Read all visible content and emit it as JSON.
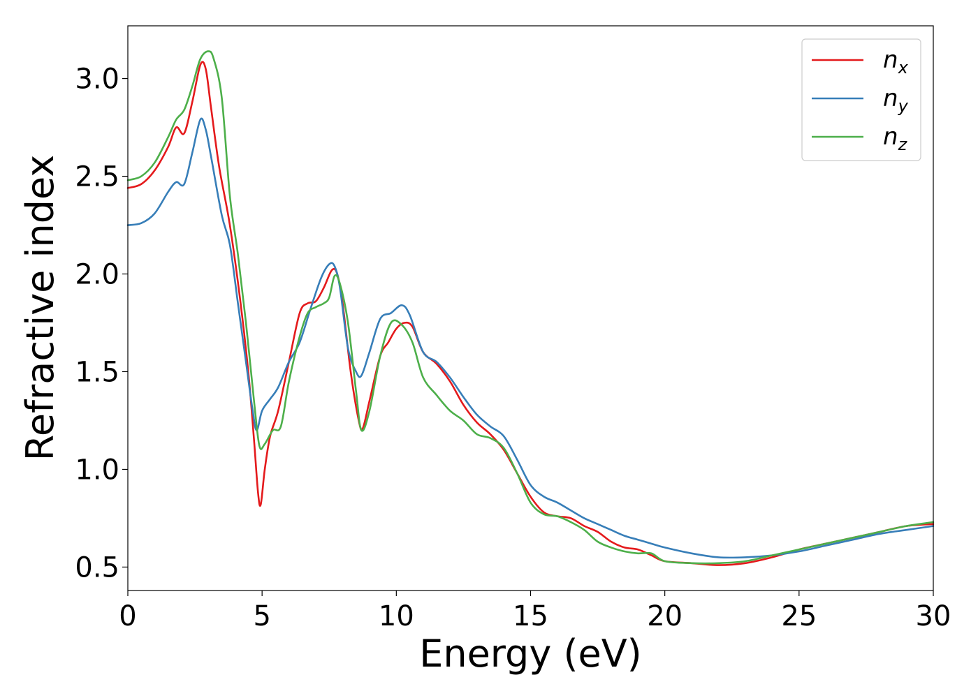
{
  "chart_data": {
    "type": "line",
    "title": "",
    "xlabel": "Energy (eV)",
    "ylabel": "Refractive index",
    "xlim": [
      0,
      30
    ],
    "ylim": [
      0.38,
      3.27
    ],
    "xticks": [
      "0",
      "5",
      "10",
      "15",
      "20",
      "25",
      "30"
    ],
    "xtick_values": [
      0,
      5,
      10,
      15,
      20,
      25,
      30
    ],
    "yticks": [
      "0.5",
      "1.0",
      "1.5",
      "2.0",
      "2.5",
      "3.0"
    ],
    "ytick_values": [
      0.5,
      1.0,
      1.5,
      2.0,
      2.5,
      3.0
    ],
    "grid": false,
    "legend_position": "top-right",
    "series": [
      {
        "name": "n",
        "subscript": "x",
        "color": "#e41a1c",
        "x": [
          0,
          0.5,
          1.0,
          1.5,
          1.8,
          2.1,
          2.4,
          2.7,
          2.9,
          3.1,
          3.4,
          3.8,
          4.2,
          4.5,
          4.7,
          4.85,
          4.95,
          5.1,
          5.3,
          5.6,
          6.0,
          6.4,
          6.7,
          7.0,
          7.3,
          7.6,
          7.8,
          8.0,
          8.3,
          8.6,
          8.75,
          9.0,
          9.4,
          9.7,
          10.0,
          10.3,
          10.6,
          11.0,
          11.5,
          12.0,
          12.5,
          13.0,
          13.5,
          14.0,
          14.5,
          15.0,
          15.5,
          16.0,
          16.5,
          17.0,
          17.5,
          18.0,
          18.5,
          19.0,
          19.5,
          20.0,
          21.0,
          22.0,
          23.0,
          24.0,
          25.0,
          26.0,
          27.0,
          28.0,
          29.0,
          30.0
        ],
        "y": [
          2.44,
          2.46,
          2.53,
          2.65,
          2.75,
          2.72,
          2.88,
          3.07,
          3.05,
          2.85,
          2.55,
          2.25,
          1.85,
          1.48,
          1.15,
          0.88,
          0.82,
          1.0,
          1.17,
          1.3,
          1.55,
          1.8,
          1.85,
          1.86,
          1.93,
          2.02,
          2.0,
          1.85,
          1.5,
          1.25,
          1.21,
          1.35,
          1.58,
          1.65,
          1.72,
          1.75,
          1.73,
          1.6,
          1.54,
          1.45,
          1.33,
          1.24,
          1.18,
          1.1,
          0.98,
          0.86,
          0.78,
          0.76,
          0.75,
          0.71,
          0.68,
          0.63,
          0.6,
          0.59,
          0.56,
          0.53,
          0.52,
          0.51,
          0.52,
          0.55,
          0.59,
          0.62,
          0.65,
          0.68,
          0.71,
          0.72
        ]
      },
      {
        "name": "n",
        "subscript": "y",
        "color": "#377eb8",
        "x": [
          0,
          0.5,
          1.0,
          1.5,
          1.8,
          2.1,
          2.4,
          2.7,
          2.9,
          3.1,
          3.5,
          3.8,
          4.1,
          4.4,
          4.65,
          4.8,
          5.0,
          5.3,
          5.6,
          6.0,
          6.4,
          6.8,
          7.2,
          7.5,
          7.7,
          7.9,
          8.2,
          8.5,
          8.7,
          9.0,
          9.4,
          9.8,
          10.2,
          10.5,
          11.0,
          11.5,
          12.0,
          12.5,
          13.0,
          13.5,
          14.0,
          14.5,
          15.0,
          15.5,
          16.0,
          16.5,
          17.0,
          17.5,
          18.0,
          18.5,
          19.0,
          19.5,
          20.0,
          21.0,
          22.0,
          23.0,
          24.0,
          25.0,
          26.0,
          27.0,
          28.0,
          29.0,
          30.0
        ],
        "y": [
          2.25,
          2.26,
          2.31,
          2.42,
          2.47,
          2.46,
          2.62,
          2.79,
          2.74,
          2.6,
          2.3,
          2.15,
          1.85,
          1.55,
          1.3,
          1.2,
          1.3,
          1.36,
          1.42,
          1.55,
          1.65,
          1.82,
          1.98,
          2.05,
          2.04,
          1.93,
          1.62,
          1.5,
          1.48,
          1.6,
          1.77,
          1.8,
          1.84,
          1.79,
          1.6,
          1.55,
          1.47,
          1.37,
          1.28,
          1.22,
          1.17,
          1.05,
          0.92,
          0.86,
          0.83,
          0.79,
          0.75,
          0.72,
          0.69,
          0.66,
          0.64,
          0.62,
          0.6,
          0.57,
          0.55,
          0.55,
          0.56,
          0.58,
          0.61,
          0.64,
          0.67,
          0.69,
          0.71
        ]
      },
      {
        "name": "n",
        "subscript": "z",
        "color": "#4daf4a",
        "x": [
          0,
          0.5,
          1.0,
          1.5,
          1.8,
          2.1,
          2.4,
          2.7,
          3.0,
          3.2,
          3.5,
          3.8,
          4.1,
          4.4,
          4.7,
          4.9,
          5.1,
          5.4,
          5.7,
          6.0,
          6.4,
          6.7,
          7.0,
          7.3,
          7.5,
          7.7,
          7.9,
          8.2,
          8.5,
          8.7,
          9.0,
          9.4,
          9.8,
          10.2,
          10.6,
          11.0,
          11.5,
          12.0,
          12.5,
          13.0,
          13.5,
          14.0,
          14.5,
          15.0,
          15.5,
          16.0,
          16.5,
          17.0,
          17.5,
          18.0,
          18.5,
          19.0,
          19.5,
          20.0,
          21.0,
          22.0,
          23.0,
          24.0,
          25.0,
          26.0,
          27.0,
          28.0,
          29.0,
          30.0
        ],
        "y": [
          2.48,
          2.5,
          2.57,
          2.7,
          2.79,
          2.84,
          2.96,
          3.1,
          3.14,
          3.1,
          2.9,
          2.4,
          2.1,
          1.75,
          1.35,
          1.12,
          1.13,
          1.2,
          1.22,
          1.45,
          1.68,
          1.8,
          1.83,
          1.85,
          1.88,
          1.99,
          1.95,
          1.75,
          1.4,
          1.2,
          1.3,
          1.58,
          1.75,
          1.74,
          1.65,
          1.47,
          1.38,
          1.3,
          1.25,
          1.18,
          1.16,
          1.11,
          0.98,
          0.83,
          0.77,
          0.76,
          0.73,
          0.69,
          0.63,
          0.6,
          0.58,
          0.57,
          0.57,
          0.53,
          0.52,
          0.52,
          0.53,
          0.56,
          0.59,
          0.62,
          0.65,
          0.68,
          0.71,
          0.73
        ]
      }
    ]
  }
}
